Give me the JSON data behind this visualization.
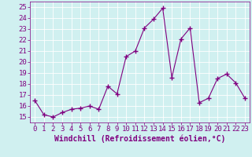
{
  "x": [
    0,
    1,
    2,
    3,
    4,
    5,
    6,
    7,
    8,
    9,
    10,
    11,
    12,
    13,
    14,
    15,
    16,
    17,
    18,
    19,
    20,
    21,
    22,
    23
  ],
  "y": [
    16.5,
    15.2,
    15.0,
    15.4,
    15.7,
    15.8,
    16.0,
    15.7,
    17.8,
    17.1,
    20.5,
    21.0,
    23.1,
    23.9,
    24.9,
    18.6,
    22.1,
    23.1,
    16.3,
    16.7,
    18.5,
    18.9,
    18.1,
    16.7
  ],
  "line_color": "#800080",
  "marker": "+",
  "marker_size": 4,
  "bg_color": "#d0f0f0",
  "grid_color": "#b0d8d8",
  "xlabel": "Windchill (Refroidissement éolien,°C)",
  "xlim": [
    -0.5,
    23.5
  ],
  "ylim": [
    14.5,
    25.5
  ],
  "yticks": [
    15,
    16,
    17,
    18,
    19,
    20,
    21,
    22,
    23,
    24,
    25
  ],
  "xticks": [
    0,
    1,
    2,
    3,
    4,
    5,
    6,
    7,
    8,
    9,
    10,
    11,
    12,
    13,
    14,
    15,
    16,
    17,
    18,
    19,
    20,
    21,
    22,
    23
  ],
  "title_color": "#800080",
  "font_size": 6.5,
  "xlabel_fontsize": 7
}
